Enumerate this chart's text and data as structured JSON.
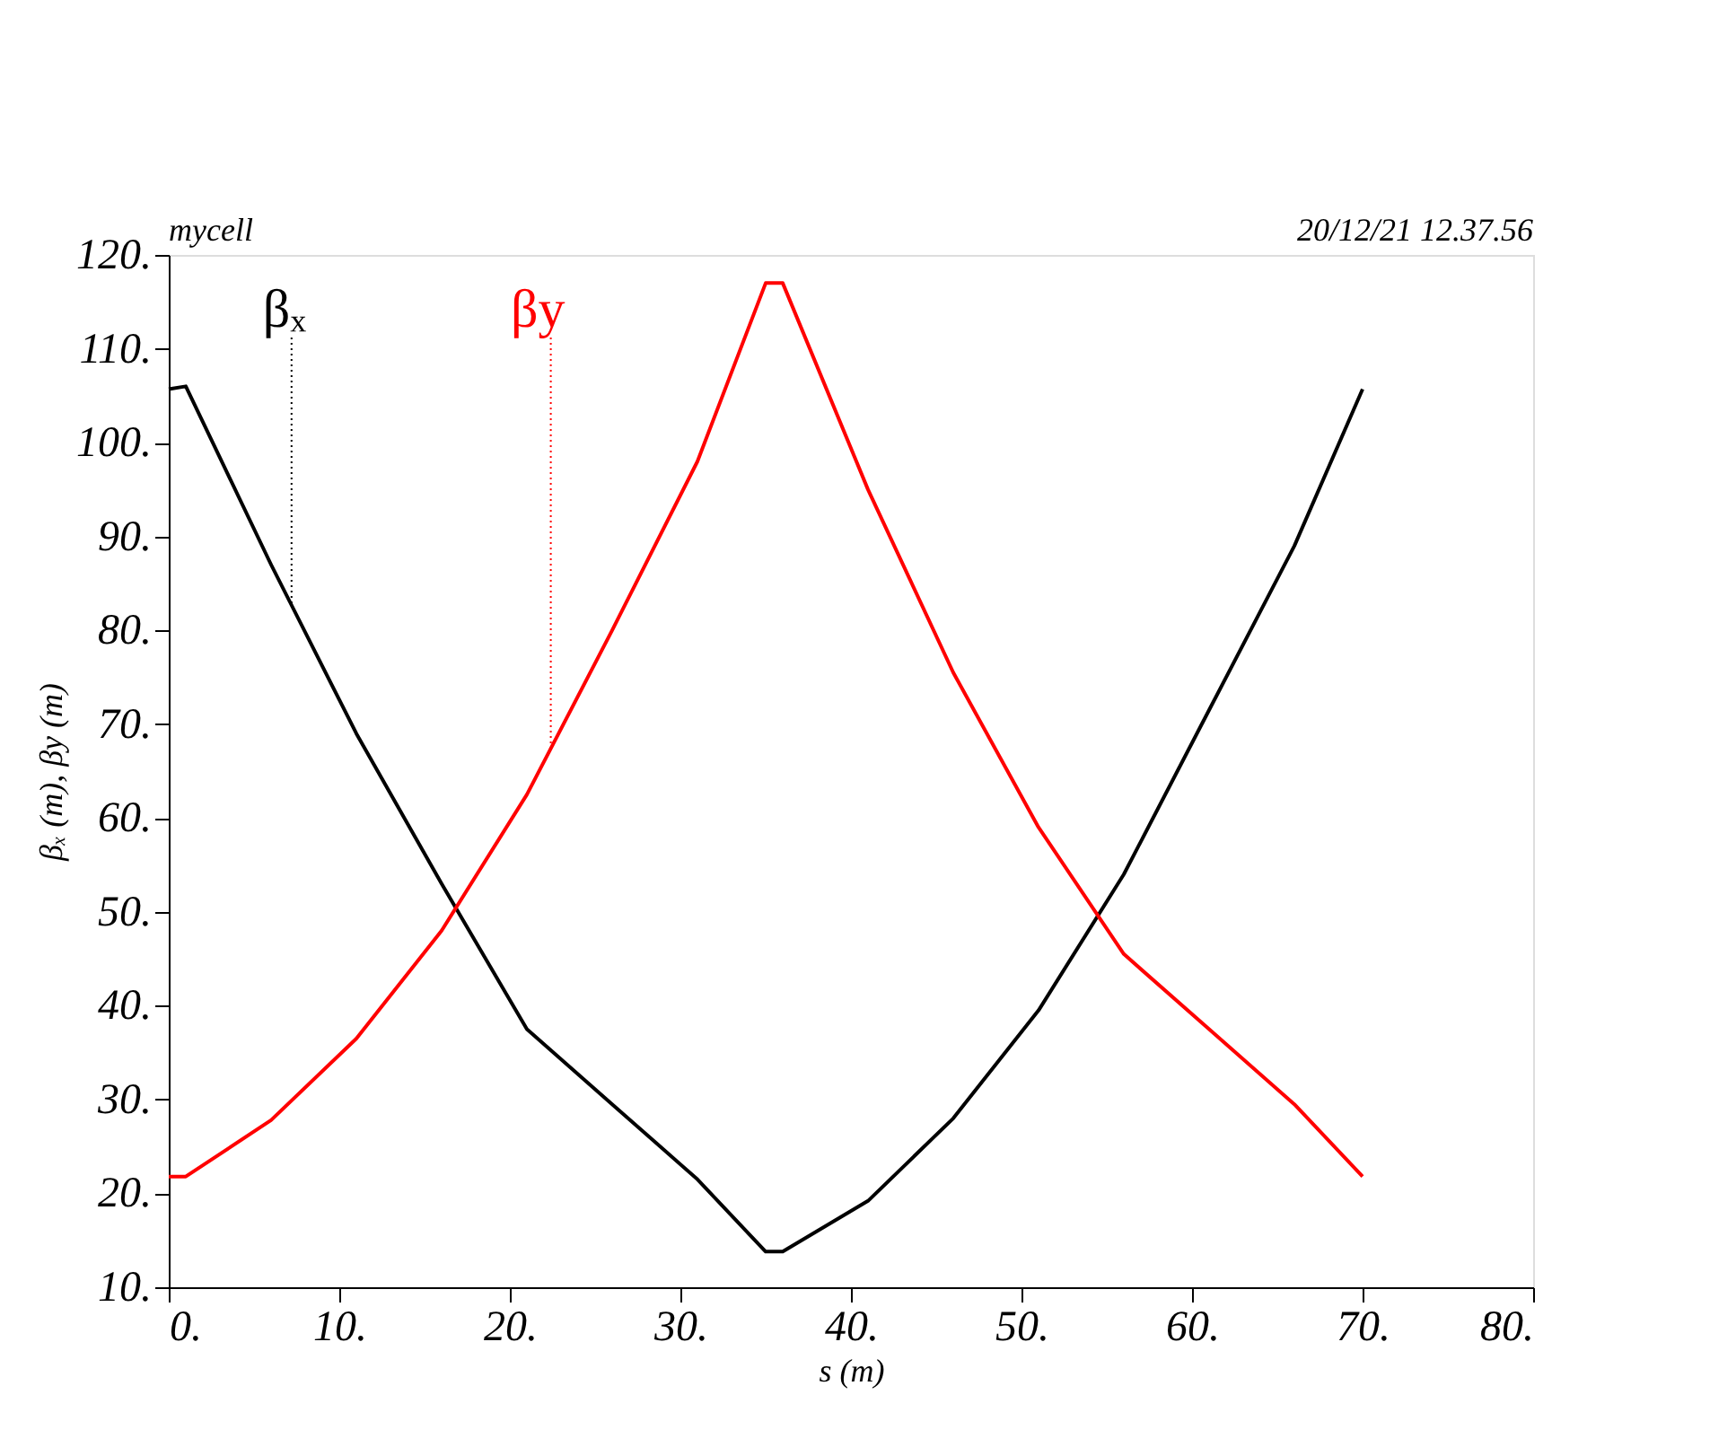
{
  "chart_data": {
    "type": "line",
    "title": "mycell",
    "xlabel": "s (m)",
    "ylabel": "βₓ (m), βy (m)",
    "annotations": [
      "20/12/21 12.37.56"
    ],
    "x": [
      0,
      1,
      6,
      11,
      16,
      21,
      26,
      31,
      35,
      36,
      41,
      46,
      51,
      56,
      61,
      66,
      70
    ],
    "series": [
      {
        "name": "βₓ",
        "color": "#000000",
        "values": [
          105.7,
          106,
          87,
          69,
          53,
          37.5,
          29.5,
          21.5,
          13.8,
          13.8,
          19.2,
          28,
          39.5,
          54,
          71.5,
          89,
          105.7
        ]
      },
      {
        "name": "βy",
        "color": "#ff0000",
        "values": [
          21.8,
          21.8,
          27.8,
          36.5,
          48,
          62.5,
          80,
          98,
          117,
          117,
          95,
          75.5,
          59,
          45.5,
          37.5,
          29.5,
          21.8
        ]
      }
    ],
    "xlim": [
      0,
      80
    ],
    "xticks": [
      {
        "value": 0,
        "label": "0."
      },
      {
        "value": 10,
        "label": "10."
      },
      {
        "value": 20,
        "label": "20."
      },
      {
        "value": 30,
        "label": "30."
      },
      {
        "value": 40,
        "label": "40."
      },
      {
        "value": 50,
        "label": "50."
      },
      {
        "value": 60,
        "label": "60."
      },
      {
        "value": 70,
        "label": "70."
      },
      {
        "value": 80,
        "label": "80."
      }
    ],
    "ylim": [
      10,
      120
    ],
    "yticks": [
      {
        "value": 10,
        "label": "10."
      },
      {
        "value": 20,
        "label": "20."
      },
      {
        "value": 30,
        "label": "30."
      },
      {
        "value": 40,
        "label": "40."
      },
      {
        "value": 50,
        "label": "50."
      },
      {
        "value": 60,
        "label": "60."
      },
      {
        "value": 70,
        "label": "70."
      },
      {
        "value": 80,
        "label": "80."
      },
      {
        "value": 90,
        "label": "90."
      },
      {
        "value": 100,
        "label": "100."
      },
      {
        "value": 110,
        "label": "110."
      },
      {
        "value": 120,
        "label": "120."
      }
    ],
    "grid": false,
    "line_style": "solid",
    "marker": "none"
  }
}
